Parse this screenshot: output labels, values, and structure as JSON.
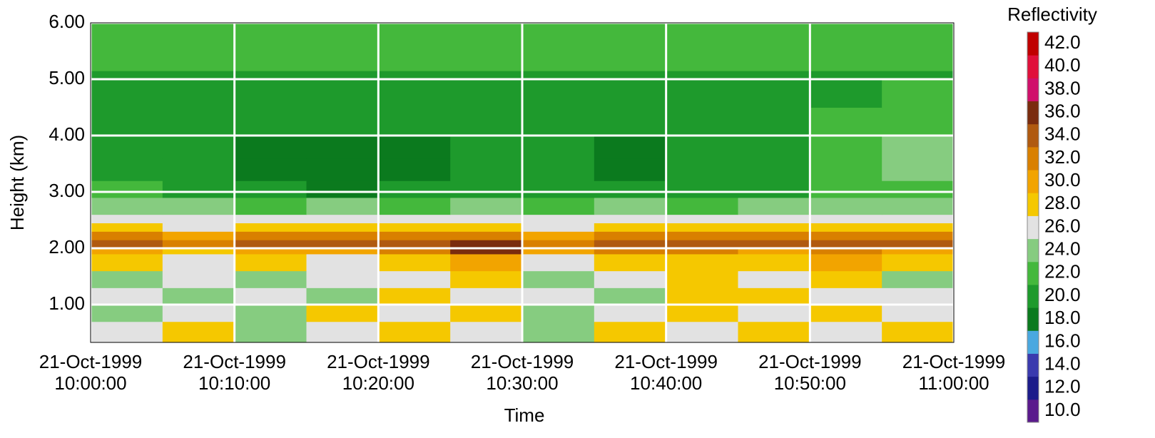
{
  "chart_data": {
    "type": "heatmap",
    "xlabel": "Time",
    "ylabel": "Height (km)",
    "x": [
      0,
      5,
      10,
      15,
      20,
      25,
      30,
      35,
      40,
      45,
      50,
      55,
      60
    ],
    "y": [
      0.33,
      0.7,
      1.0,
      1.3,
      1.6,
      1.9,
      2.0,
      2.15,
      2.3,
      2.45,
      2.6,
      2.9,
      3.2,
      3.6,
      4.0,
      4.5,
      5.0,
      5.15,
      6.0
    ],
    "z": [
      [
        26,
        28,
        24,
        26,
        28,
        26,
        24,
        28,
        26,
        28,
        26,
        28
      ],
      [
        24,
        26,
        24,
        28,
        26,
        28,
        24,
        26,
        28,
        26,
        28,
        26
      ],
      [
        26,
        24,
        26,
        24,
        28,
        26,
        26,
        24,
        28,
        28,
        26,
        26
      ],
      [
        24,
        26,
        24,
        26,
        26,
        28,
        24,
        26,
        28,
        26,
        28,
        24
      ],
      [
        28,
        26,
        28,
        26,
        28,
        30,
        26,
        28,
        28,
        28,
        30,
        28
      ],
      [
        30,
        28,
        30,
        30,
        32,
        36,
        30,
        32,
        32,
        30,
        32,
        30
      ],
      [
        34,
        32,
        34,
        34,
        34,
        36,
        32,
        34,
        34,
        34,
        34,
        34
      ],
      [
        32,
        30,
        32,
        32,
        32,
        32,
        30,
        32,
        32,
        32,
        32,
        32
      ],
      [
        28,
        26,
        28,
        28,
        28,
        28,
        26,
        28,
        28,
        28,
        28,
        28
      ],
      [
        26,
        26,
        26,
        26,
        26,
        26,
        26,
        26,
        26,
        26,
        26,
        26
      ],
      [
        24,
        24,
        22,
        24,
        22,
        24,
        22,
        24,
        22,
        24,
        24,
        24
      ],
      [
        22,
        20,
        20,
        18,
        20,
        20,
        20,
        20,
        20,
        20,
        22,
        22
      ],
      [
        20,
        20,
        18,
        18,
        18,
        20,
        20,
        18,
        20,
        20,
        22,
        24
      ],
      [
        20,
        20,
        18,
        18,
        18,
        20,
        20,
        18,
        20,
        20,
        22,
        24
      ],
      [
        20,
        20,
        20,
        20,
        20,
        20,
        20,
        20,
        20,
        20,
        22,
        22
      ],
      [
        20,
        20,
        20,
        20,
        20,
        20,
        20,
        20,
        20,
        20,
        20,
        22
      ],
      [
        20,
        20,
        20,
        20,
        20,
        20,
        20,
        20,
        20,
        20,
        20,
        20
      ],
      [
        22,
        22,
        22,
        22,
        22,
        22,
        22,
        22,
        22,
        22,
        22,
        22
      ]
    ],
    "xlim": [
      0,
      60
    ],
    "xticks": [
      {
        "value": 0,
        "label": "21-Oct-1999\n10:00:00"
      },
      {
        "value": 10,
        "label": "21-Oct-1999\n10:10:00"
      },
      {
        "value": 20,
        "label": "21-Oct-1999\n10:20:00"
      },
      {
        "value": 30,
        "label": "21-Oct-1999\n10:30:00"
      },
      {
        "value": 40,
        "label": "21-Oct-1999\n10:40:00"
      },
      {
        "value": 50,
        "label": "21-Oct-1999\n10:50:00"
      },
      {
        "value": 60,
        "label": "21-Oct-1999\n11:00:00"
      }
    ],
    "ylim": [
      0.33,
      6
    ],
    "yticks": [
      {
        "value": 1,
        "label": "1.00"
      },
      {
        "value": 2,
        "label": "2.00"
      },
      {
        "value": 3,
        "label": "3.00"
      },
      {
        "value": 4,
        "label": "4.00"
      },
      {
        "value": 5,
        "label": "5.00"
      },
      {
        "value": 6,
        "label": "6.00"
      }
    ],
    "grid": true,
    "colorbar": {
      "title": "Reflectivity",
      "ticks": [
        {
          "value": 10,
          "label": "10.0"
        },
        {
          "value": 12,
          "label": "12.0"
        },
        {
          "value": 14,
          "label": "14.0"
        },
        {
          "value": 16,
          "label": "16.0"
        },
        {
          "value": 18,
          "label": "18.0"
        },
        {
          "value": 20,
          "label": "20.0"
        },
        {
          "value": 22,
          "label": "22.0"
        },
        {
          "value": 24,
          "label": "24.0"
        },
        {
          "value": 26,
          "label": "26.0"
        },
        {
          "value": 28,
          "label": "28.0"
        },
        {
          "value": 30,
          "label": "30.0"
        },
        {
          "value": 32,
          "label": "32.0"
        },
        {
          "value": 34,
          "label": "34.0"
        },
        {
          "value": 36,
          "label": "36.0"
        },
        {
          "value": 38,
          "label": "38.0"
        },
        {
          "value": 40,
          "label": "40.0"
        },
        {
          "value": 42,
          "label": "42.0"
        }
      ],
      "colors": [
        "#5a1a8c",
        "#1c1c8a",
        "#3a3aae",
        "#4aa8e0",
        "#0b7a1e",
        "#1e9a2c",
        "#44b83c",
        "#86cc80",
        "#e2e2e2",
        "#f5c800",
        "#f2a400",
        "#d98000",
        "#b05a10",
        "#7a2c0e",
        "#d0106a",
        "#e0103a",
        "#c00000"
      ]
    }
  }
}
